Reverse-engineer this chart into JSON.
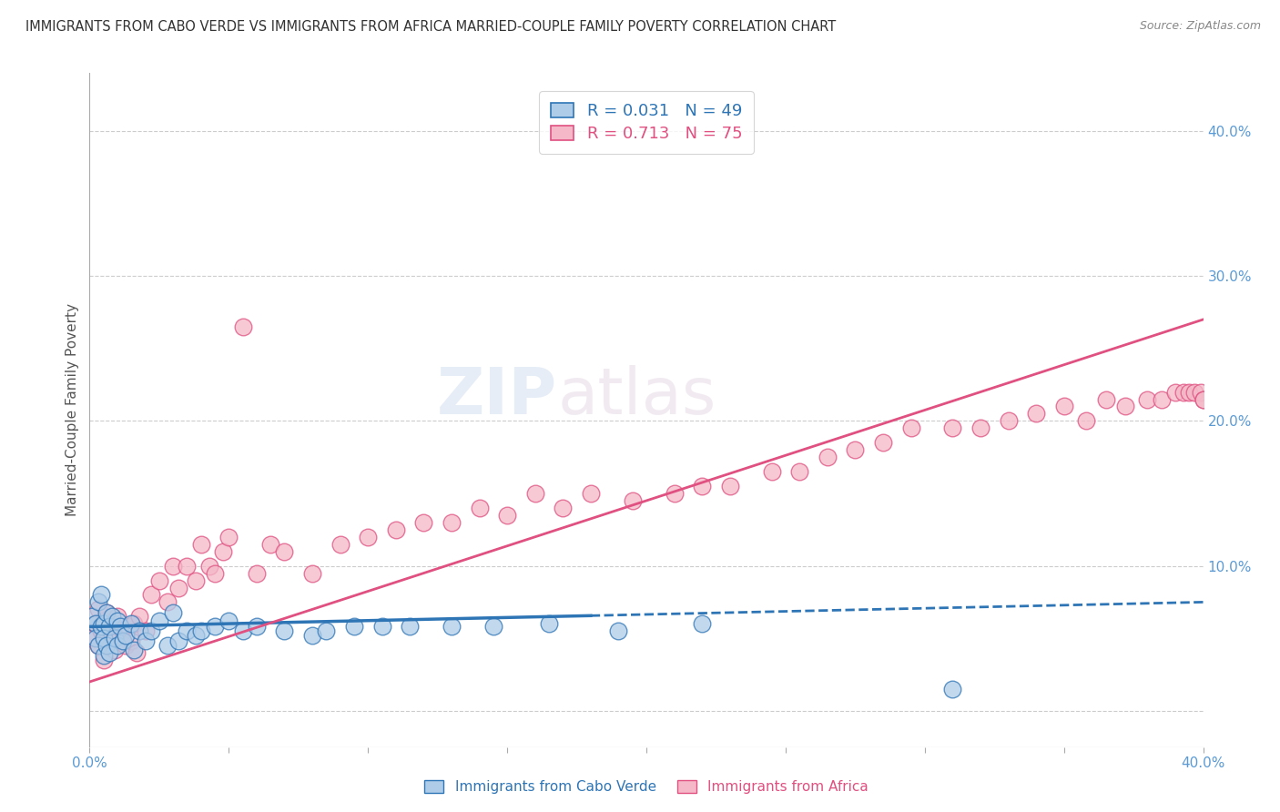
{
  "title": "IMMIGRANTS FROM CABO VERDE VS IMMIGRANTS FROM AFRICA MARRIED-COUPLE FAMILY POVERTY CORRELATION CHART",
  "source": "Source: ZipAtlas.com",
  "ylabel": "Married-Couple Family Poverty",
  "xlim": [
    0.0,
    0.4
  ],
  "ylim": [
    -0.025,
    0.44
  ],
  "yticks_right": [
    0.0,
    0.1,
    0.2,
    0.3,
    0.4
  ],
  "ytick_labels_right": [
    "",
    "10.0%",
    "20.0%",
    "30.0%",
    "40.0%"
  ],
  "xticks": [
    0.0,
    0.05,
    0.1,
    0.15,
    0.2,
    0.25,
    0.3,
    0.35,
    0.4
  ],
  "xtick_labels": [
    "0.0%",
    "",
    "",
    "",
    "",
    "",
    "",
    "",
    "40.0%"
  ],
  "legend_r1": "R = 0.031",
  "legend_n1": "N = 49",
  "legend_r2": "R = 0.713",
  "legend_n2": "N = 75",
  "cabo_verde_color": "#aecce8",
  "africa_color": "#f4b8c8",
  "cabo_verde_line_color": "#2e75b6",
  "africa_line_color": "#e05080",
  "background_color": "#ffffff",
  "cabo_verde_x": [
    0.001,
    0.002,
    0.002,
    0.003,
    0.003,
    0.004,
    0.004,
    0.005,
    0.005,
    0.005,
    0.006,
    0.006,
    0.007,
    0.007,
    0.008,
    0.009,
    0.01,
    0.01,
    0.011,
    0.012,
    0.013,
    0.015,
    0.016,
    0.018,
    0.02,
    0.022,
    0.025,
    0.028,
    0.03,
    0.032,
    0.035,
    0.038,
    0.04,
    0.045,
    0.05,
    0.055,
    0.06,
    0.07,
    0.08,
    0.085,
    0.095,
    0.105,
    0.115,
    0.13,
    0.145,
    0.165,
    0.19,
    0.22,
    0.31
  ],
  "cabo_verde_y": [
    0.065,
    0.06,
    0.05,
    0.075,
    0.045,
    0.08,
    0.058,
    0.06,
    0.05,
    0.038,
    0.068,
    0.045,
    0.058,
    0.04,
    0.065,
    0.05,
    0.062,
    0.045,
    0.058,
    0.048,
    0.052,
    0.06,
    0.042,
    0.055,
    0.048,
    0.055,
    0.062,
    0.045,
    0.068,
    0.048,
    0.055,
    0.052,
    0.055,
    0.058,
    0.062,
    0.055,
    0.058,
    0.055,
    0.052,
    0.055,
    0.058,
    0.058,
    0.058,
    0.058,
    0.058,
    0.06,
    0.055,
    0.06,
    0.015
  ],
  "africa_x": [
    0.001,
    0.002,
    0.003,
    0.003,
    0.004,
    0.005,
    0.005,
    0.006,
    0.007,
    0.008,
    0.009,
    0.01,
    0.011,
    0.012,
    0.013,
    0.014,
    0.015,
    0.016,
    0.017,
    0.018,
    0.02,
    0.022,
    0.025,
    0.028,
    0.03,
    0.032,
    0.035,
    0.038,
    0.04,
    0.043,
    0.045,
    0.048,
    0.05,
    0.055,
    0.06,
    0.065,
    0.07,
    0.08,
    0.09,
    0.1,
    0.11,
    0.12,
    0.13,
    0.14,
    0.15,
    0.16,
    0.17,
    0.18,
    0.195,
    0.21,
    0.22,
    0.23,
    0.245,
    0.255,
    0.265,
    0.275,
    0.285,
    0.295,
    0.31,
    0.32,
    0.33,
    0.34,
    0.35,
    0.358,
    0.365,
    0.372,
    0.38,
    0.385,
    0.39,
    0.393,
    0.395,
    0.397,
    0.399,
    0.4,
    0.4
  ],
  "africa_y": [
    0.05,
    0.06,
    0.045,
    0.07,
    0.055,
    0.062,
    0.035,
    0.068,
    0.048,
    0.06,
    0.042,
    0.065,
    0.052,
    0.055,
    0.045,
    0.058,
    0.048,
    0.06,
    0.04,
    0.065,
    0.055,
    0.08,
    0.09,
    0.075,
    0.1,
    0.085,
    0.1,
    0.09,
    0.115,
    0.1,
    0.095,
    0.11,
    0.12,
    0.265,
    0.095,
    0.115,
    0.11,
    0.095,
    0.115,
    0.12,
    0.125,
    0.13,
    0.13,
    0.14,
    0.135,
    0.15,
    0.14,
    0.15,
    0.145,
    0.15,
    0.155,
    0.155,
    0.165,
    0.165,
    0.175,
    0.18,
    0.185,
    0.195,
    0.195,
    0.195,
    0.2,
    0.205,
    0.21,
    0.2,
    0.215,
    0.21,
    0.215,
    0.215,
    0.22,
    0.22,
    0.22,
    0.22,
    0.22,
    0.215,
    0.215
  ],
  "cabo_verde_trend_x": [
    0.0,
    0.4
  ],
  "cabo_verde_trend_y_start": 0.058,
  "cabo_verde_trend_y_end": 0.075,
  "africa_trend_x": [
    0.0,
    0.4
  ],
  "africa_trend_y_start": 0.02,
  "africa_trend_y_end": 0.27
}
